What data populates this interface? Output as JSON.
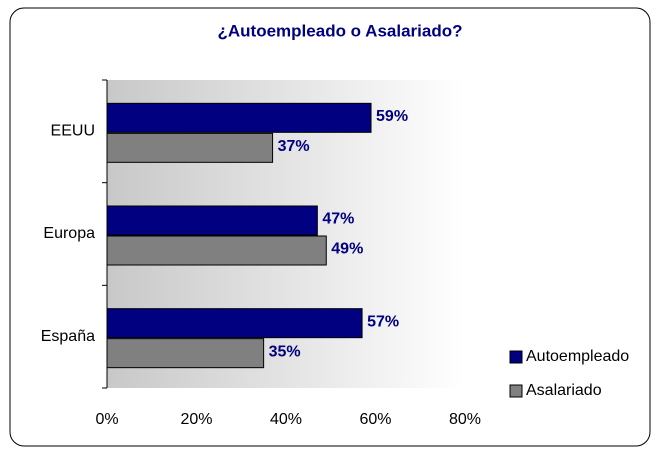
{
  "chart_data": {
    "type": "bar",
    "orientation": "horizontal",
    "title": "¿Autoempleado o Asalariado?",
    "categories": [
      "EEUU",
      "Europa",
      "España"
    ],
    "series": [
      {
        "name": "Autoempleado",
        "color": "#000080",
        "values": [
          59,
          47,
          57
        ],
        "value_labels": [
          "59%",
          "47%",
          "57%"
        ]
      },
      {
        "name": "Asalariado",
        "color": "#808080",
        "values": [
          37,
          49,
          35
        ],
        "value_labels": [
          "37%",
          "49%",
          "35%"
        ]
      }
    ],
    "xlim": [
      0,
      80
    ],
    "xticks": [
      {
        "value": 0,
        "label": "0%"
      },
      {
        "value": 20,
        "label": "20%"
      },
      {
        "value": 40,
        "label": "40%"
      },
      {
        "value": 60,
        "label": "60%"
      },
      {
        "value": 80,
        "label": "80%"
      }
    ],
    "legend": "lower right",
    "grid": false
  }
}
